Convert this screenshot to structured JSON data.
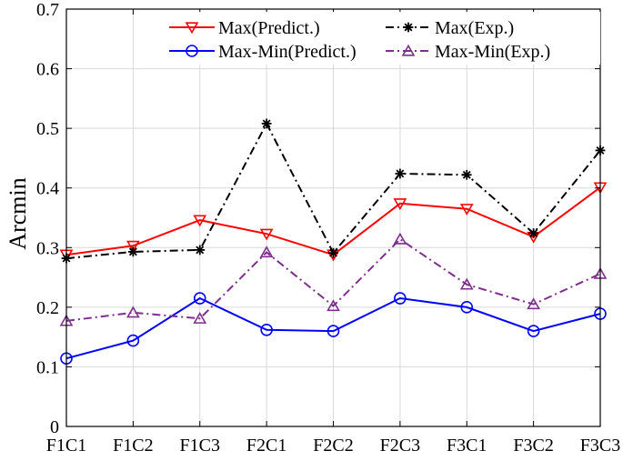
{
  "chart_data": {
    "type": "line",
    "categories": [
      "F1C1",
      "F1C2",
      "F1C3",
      "F2C1",
      "F2C2",
      "F2C3",
      "F3C1",
      "F3C2",
      "F3C3"
    ],
    "ylabel": "Arcmin",
    "xlabel": "",
    "ylim": [
      0,
      0.7
    ],
    "yticks": [
      "0",
      "0.1",
      "0.2",
      "0.3",
      "0.4",
      "0.5",
      "0.6",
      "0.7"
    ],
    "grid": true,
    "legend_placement": "top",
    "series": [
      {
        "name": "Max(Predict.)",
        "color": "#ff0000",
        "line_style": "solid",
        "marker": "triangle-down",
        "values": [
          0.288,
          0.303,
          0.346,
          0.323,
          0.288,
          0.374,
          0.365,
          0.318,
          0.401
        ]
      },
      {
        "name": "Max(Exp.)",
        "color": "#000000",
        "line_style": "dash-dot",
        "marker": "asterisk",
        "values": [
          0.282,
          0.293,
          0.296,
          0.508,
          0.291,
          0.424,
          0.422,
          0.324,
          0.463
        ]
      },
      {
        "name": "Max-Min(Predict.)",
        "color": "#0000ff",
        "line_style": "solid",
        "marker": "circle",
        "values": [
          0.114,
          0.144,
          0.215,
          0.162,
          0.16,
          0.215,
          0.2,
          0.16,
          0.189
        ]
      },
      {
        "name": "Max-Min(Exp.)",
        "color": "#7e2f8e",
        "line_style": "dash-dot",
        "marker": "triangle-up",
        "values": [
          0.177,
          0.191,
          0.181,
          0.292,
          0.202,
          0.314,
          0.238,
          0.205,
          0.256
        ]
      }
    ]
  }
}
